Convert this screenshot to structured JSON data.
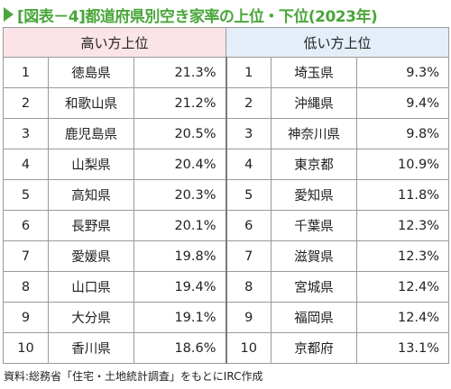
{
  "title": "[図表－4]都道府県別空き家率の上位・下位(2023年)",
  "headers": {
    "high": "高い方上位",
    "low": "低い方上位"
  },
  "rows": [
    {
      "rank": "1",
      "high_pref": "徳島県",
      "high_rate": "21.3%",
      "low_rank": "1",
      "low_pref": "埼玉県",
      "low_rate": "9.3%"
    },
    {
      "rank": "2",
      "high_pref": "和歌山県",
      "high_rate": "21.2%",
      "low_rank": "2",
      "low_pref": "沖縄県",
      "low_rate": "9.4%"
    },
    {
      "rank": "3",
      "high_pref": "鹿児島県",
      "high_rate": "20.5%",
      "low_rank": "3",
      "low_pref": "神奈川県",
      "low_rate": "9.8%"
    },
    {
      "rank": "4",
      "high_pref": "山梨県",
      "high_rate": "20.4%",
      "low_rank": "4",
      "low_pref": "東京都",
      "low_rate": "10.9%"
    },
    {
      "rank": "5",
      "high_pref": "高知県",
      "high_rate": "20.3%",
      "low_rank": "5",
      "low_pref": "愛知県",
      "low_rate": "11.8%"
    },
    {
      "rank": "6",
      "high_pref": "長野県",
      "high_rate": "20.1%",
      "low_rank": "6",
      "low_pref": "千葉県",
      "low_rate": "12.3%"
    },
    {
      "rank": "7",
      "high_pref": "愛媛県",
      "high_rate": "19.8%",
      "low_rank": "7",
      "low_pref": "滋賀県",
      "low_rate": "12.3%"
    },
    {
      "rank": "8",
      "high_pref": "山口県",
      "high_rate": "19.4%",
      "low_rank": "8",
      "low_pref": "宮城県",
      "low_rate": "12.4%"
    },
    {
      "rank": "9",
      "high_pref": "大分県",
      "high_rate": "19.1%",
      "low_rank": "9",
      "low_pref": "福岡県",
      "low_rate": "12.4%"
    },
    {
      "rank": "10",
      "high_pref": "香川県",
      "high_rate": "18.6%",
      "low_rank": "10",
      "low_pref": "京都府",
      "low_rate": "13.1%"
    }
  ],
  "source": "資料:総務省「住宅・土地統計調査」をもとにIRC作成",
  "colors": {
    "accent": "#4aa63a",
    "high_header_bg": "#fbe4e8",
    "low_header_bg": "#e4eef9"
  }
}
